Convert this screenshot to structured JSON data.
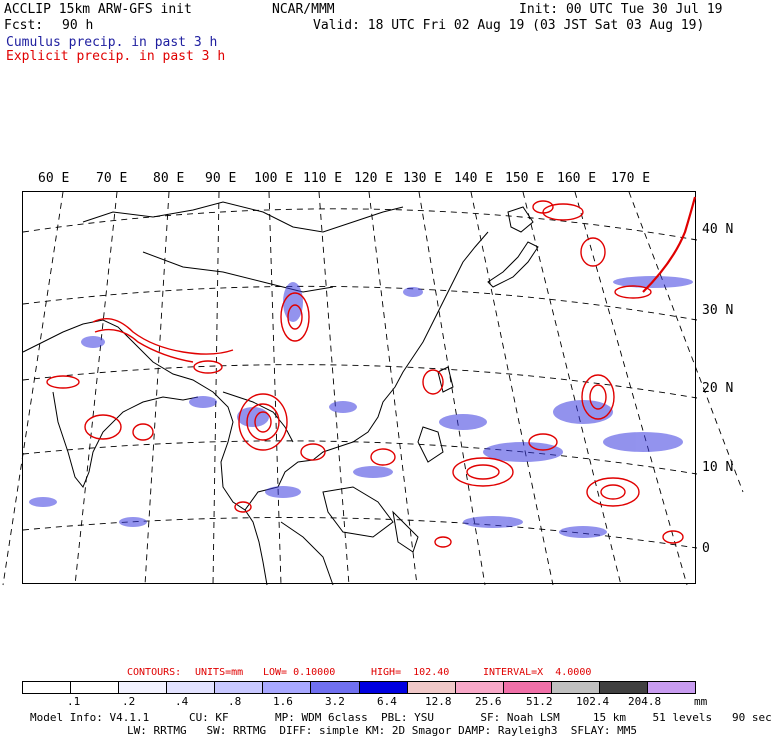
{
  "header": {
    "model": "ACCLIP 15km ARW-GFS init",
    "org": "NCAR/MMM",
    "init": "Init: 00 UTC Tue 30 Jul 19",
    "fcst_label": "Fcst:",
    "fcst_value": "90 h",
    "valid": "Valid: 18 UTC Fri 02 Aug 19 (03 JST Sat 03 Aug 19)",
    "cumulus": "Cumulus precip. in past 3 h",
    "explicit": "Explicit precip. in past 3 h"
  },
  "map": {
    "lon_labels": [
      "60 E",
      "70 E",
      "80 E",
      "90 E",
      "100 E",
      "110 E",
      "120 E",
      "130 E",
      "140 E",
      "150 E",
      "160 E",
      "170 E"
    ],
    "lat_labels": [
      "40 N",
      "30 N",
      "20 N",
      "10 N",
      "0"
    ],
    "colors": {
      "cumulus": "#3a3ae0",
      "explicit": "#e00000",
      "coast": "#000000"
    }
  },
  "contours": {
    "label": "CONTOURS:",
    "units": "UNITS=mm",
    "low": "LOW= 0.10000",
    "high": "HIGH=  102.40",
    "interval": "INTERVAL=X  4.0000"
  },
  "colorbar": {
    "colors": [
      "#ffffff",
      "#ffffff",
      "#f2f2ff",
      "#e2e2ff",
      "#c8c8ff",
      "#a8a8ff",
      "#7070f0",
      "#0000e0",
      "#f0c8c8",
      "#f8a8c8",
      "#f070a8",
      "#c0c0c0",
      "#404040",
      "#c89cf0"
    ],
    "ticks": [
      ".1",
      ".2",
      ".4",
      ".8",
      "1.6",
      "3.2",
      "6.4",
      "12.8",
      "25.6",
      "51.2",
      "102.4",
      "204.8"
    ],
    "unit": "mm"
  },
  "footer": {
    "line1": "Model Info: V4.1.1      CU: KF       MP: WDM 6class  PBL: YSU       SF: Noah LSM     15 km    51 levels   90 sec",
    "line2": "LW: RRTMG   SW: RRTMG  DIFF: simple KM: 2D Smagor DAMP: Rayleigh3  SFLAY: MM5"
  }
}
